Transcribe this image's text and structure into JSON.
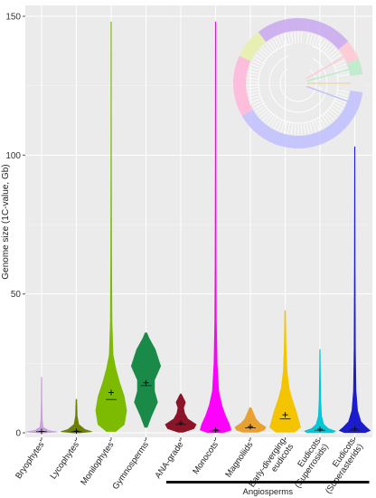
{
  "chart_data": {
    "type": "violin",
    "title": "",
    "xlabel": "",
    "ylabel": "Genome size (1C-value, Gb)",
    "ylim": [
      0,
      150
    ],
    "yticks": [
      0,
      50,
      100,
      150
    ],
    "grid": true,
    "background": "#ebebeb",
    "categories": [
      "Bryophytes'",
      "Lycophytes'",
      "Monilophytes'",
      "Gymnosperms'",
      "ANA-grade'",
      "Monocots'",
      "Magnoliids'",
      "Early-diverging eudicots",
      "Eudicots (Superrosids)",
      "Eudicots (Superasterids)"
    ],
    "series": [
      {
        "color": "#c9a0dc",
        "min": 0.1,
        "max": 20,
        "mean": 0.5,
        "median": 0.4,
        "profile": [
          [
            0,
            0.1
          ],
          [
            0.3,
            1
          ],
          [
            0.8,
            0.45
          ],
          [
            2,
            0.1
          ],
          [
            5,
            0.04
          ],
          [
            12,
            0.02
          ],
          [
            20,
            0.01
          ]
        ]
      },
      {
        "color": "#6f7f00",
        "min": 0.1,
        "max": 12,
        "mean": 0.6,
        "median": 0.4,
        "profile": [
          [
            0,
            0.2
          ],
          [
            0.4,
            1
          ],
          [
            1.2,
            0.55
          ],
          [
            3,
            0.15
          ],
          [
            6,
            0.05
          ],
          [
            12,
            0.02
          ]
        ]
      },
      {
        "color": "#7dbb00",
        "min": 0.5,
        "max": 148,
        "mean": 14.5,
        "median": 12,
        "profile": [
          [
            0.5,
            0.3
          ],
          [
            3,
            0.85
          ],
          [
            8,
            1
          ],
          [
            13,
            0.85
          ],
          [
            18,
            0.55
          ],
          [
            23,
            0.3
          ],
          [
            28,
            0.12
          ],
          [
            40,
            0.05
          ],
          [
            60,
            0.03
          ],
          [
            100,
            0.015
          ],
          [
            148,
            0.01
          ]
        ]
      },
      {
        "color": "#1a8a48",
        "min": 2,
        "max": 36,
        "mean": 18,
        "median": 17,
        "profile": [
          [
            2,
            0.08
          ],
          [
            6,
            0.35
          ],
          [
            11,
            0.75
          ],
          [
            15,
            0.55
          ],
          [
            19,
            0.55
          ],
          [
            24,
            0.95
          ],
          [
            30,
            0.6
          ],
          [
            34,
            0.2
          ],
          [
            36,
            0.05
          ]
        ]
      },
      {
        "color": "#8b1428",
        "min": 0.2,
        "max": 14,
        "mean": 3.5,
        "median": 3,
        "profile": [
          [
            0.2,
            0.15
          ],
          [
            1.5,
            0.85
          ],
          [
            3,
            1
          ],
          [
            5,
            0.45
          ],
          [
            7,
            0.25
          ],
          [
            9,
            0.18
          ],
          [
            11,
            0.3
          ],
          [
            13,
            0.12
          ],
          [
            14,
            0.02
          ]
        ]
      },
      {
        "color": "#ff00ff",
        "min": 0.1,
        "max": 148,
        "mean": 1,
        "median": 0.7,
        "profile": [
          [
            0.1,
            0.5
          ],
          [
            1,
            1
          ],
          [
            3,
            0.9
          ],
          [
            6,
            0.65
          ],
          [
            10,
            0.4
          ],
          [
            15,
            0.2
          ],
          [
            25,
            0.1
          ],
          [
            40,
            0.05
          ],
          [
            60,
            0.03
          ],
          [
            100,
            0.015
          ],
          [
            148,
            0.008
          ]
        ]
      },
      {
        "color": "#e8a030",
        "min": 0.2,
        "max": 9,
        "mean": 2.2,
        "median": 1.8,
        "profile": [
          [
            0.2,
            0.5
          ],
          [
            1,
            0.9
          ],
          [
            2,
            1
          ],
          [
            3.5,
            0.6
          ],
          [
            5,
            0.35
          ],
          [
            7,
            0.2
          ],
          [
            9,
            0.05
          ]
        ]
      },
      {
        "color": "#f5c400",
        "min": 0.2,
        "max": 44,
        "mean": 6.5,
        "median": 5,
        "profile": [
          [
            0.2,
            0.6
          ],
          [
            2,
            1
          ],
          [
            5,
            0.85
          ],
          [
            8,
            0.7
          ],
          [
            12,
            0.45
          ],
          [
            16,
            0.25
          ],
          [
            22,
            0.12
          ],
          [
            30,
            0.06
          ],
          [
            44,
            0.02
          ]
        ]
      },
      {
        "color": "#00c8d8",
        "min": 0.1,
        "max": 30,
        "mean": 1.3,
        "median": 0.9,
        "profile": [
          [
            0.1,
            0.85
          ],
          [
            0.6,
            1
          ],
          [
            1.5,
            0.55
          ],
          [
            3,
            0.25
          ],
          [
            6,
            0.1
          ],
          [
            12,
            0.05
          ],
          [
            20,
            0.03
          ],
          [
            30,
            0.01
          ]
        ]
      },
      {
        "color": "#1c1ccc",
        "min": 0.1,
        "max": 103,
        "mean": 1.5,
        "median": 1,
        "profile": [
          [
            0.1,
            0.7
          ],
          [
            0.8,
            1
          ],
          [
            2,
            0.75
          ],
          [
            4,
            0.4
          ],
          [
            8,
            0.18
          ],
          [
            15,
            0.08
          ],
          [
            30,
            0.04
          ],
          [
            60,
            0.02
          ],
          [
            103,
            0.008
          ]
        ]
      }
    ],
    "annotations": [
      {
        "label": "Angiosperms",
        "span_from": "ANA-grade'",
        "span_to": "Eudicots (Superasterids)"
      }
    ],
    "inset": {
      "type": "circular phylogeny",
      "clade_colors": [
        "#c8a8f0",
        "#ffc8d4",
        "#b8ecc8",
        "#f0d8b0",
        "#c0c0ff",
        "#ffb6d9",
        "#e6f0a8"
      ]
    }
  }
}
